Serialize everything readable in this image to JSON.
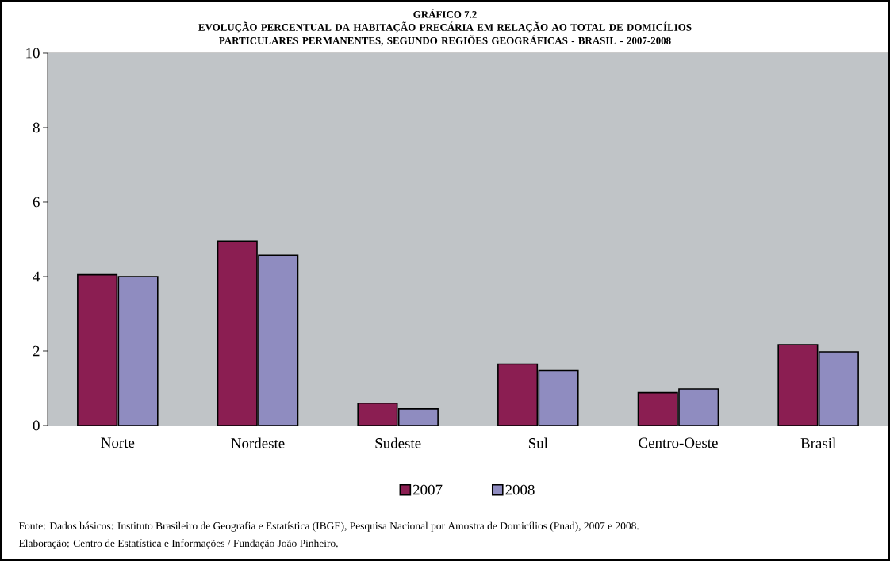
{
  "chart_data": {
    "type": "bar",
    "title": "GRÁFICO 7.2",
    "subtitle": "EVOLUÇÃO PERCENTUAL DA HABITAÇÃO PRECÁRIA EM RELAÇÃO AO TOTAL DE DOMICÍLIOS PARTICULARES PERMANENTES, SEGUNDO REGIÕES GEOGRÁFICAS - BRASIL - 2007-2008",
    "categories": [
      "Norte",
      "Nordeste",
      "Sudeste",
      "Sul",
      "Centro-Oeste",
      "Brasil"
    ],
    "series": [
      {
        "name": "2007",
        "color": "#8b1e52",
        "values": [
          4.05,
          4.95,
          0.6,
          1.65,
          0.88,
          2.17
        ]
      },
      {
        "name": "2008",
        "color": "#8f8cc0",
        "values": [
          4.0,
          4.57,
          0.45,
          1.48,
          0.98,
          1.98
        ]
      }
    ],
    "ylim": [
      0,
      10
    ],
    "yticks": [
      0,
      2,
      4,
      6,
      8,
      10
    ],
    "grid": "y",
    "legend": "bottom",
    "annotations": [
      "Fonte: Dados básicos: Instituto Brasileiro de Geografia e Estatística (IBGE), Pesquisa Nacional por Amostra de Domicílios (Pnad), 2007 e 2008.",
      "Elaboração: Centro de Estatística e Informações / Fundação João Pinheiro."
    ]
  }
}
